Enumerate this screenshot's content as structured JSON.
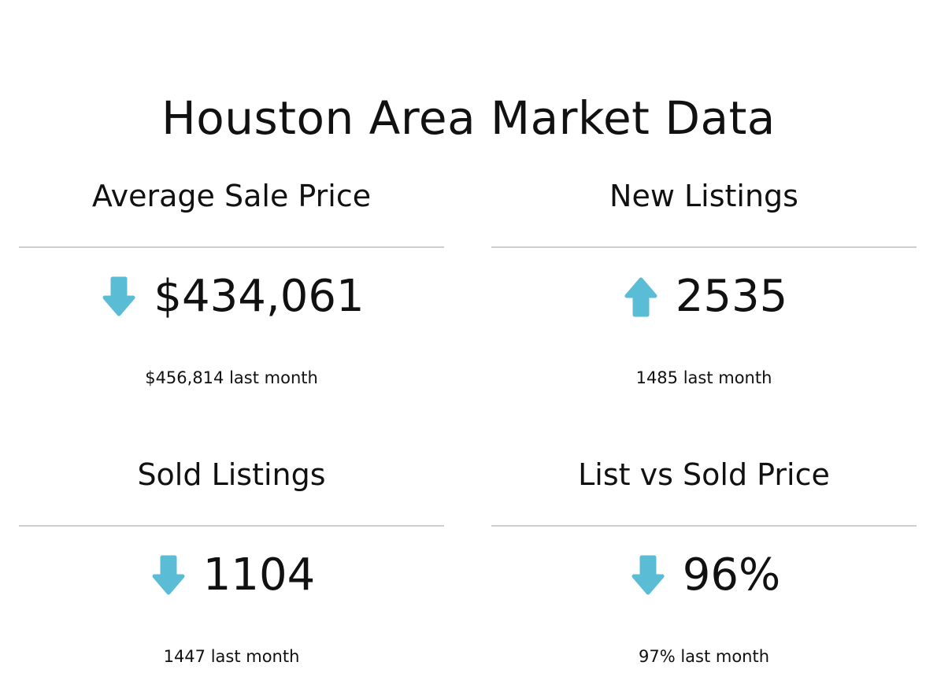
{
  "page": {
    "title": "Houston Area Market Data"
  },
  "theme": {
    "arrow_color": "#5bbdd5",
    "divider_color": "#cfcfcf",
    "text_color": "#111111"
  },
  "metrics": [
    {
      "title": "Average Sale Price",
      "value": "$434,061",
      "trend": "down",
      "trend_icon": "arrow-down-icon",
      "previous": "$456,814 last month"
    },
    {
      "title": "New Listings",
      "value": "2535",
      "trend": "up",
      "trend_icon": "arrow-up-icon",
      "previous": "1485 last month"
    },
    {
      "title": "Sold Listings",
      "value": "1104",
      "trend": "down",
      "trend_icon": "arrow-down-icon",
      "previous": "1447 last month"
    },
    {
      "title": "List vs Sold Price",
      "value": "96%",
      "trend": "down",
      "trend_icon": "arrow-down-icon",
      "previous": "97% last month"
    }
  ]
}
